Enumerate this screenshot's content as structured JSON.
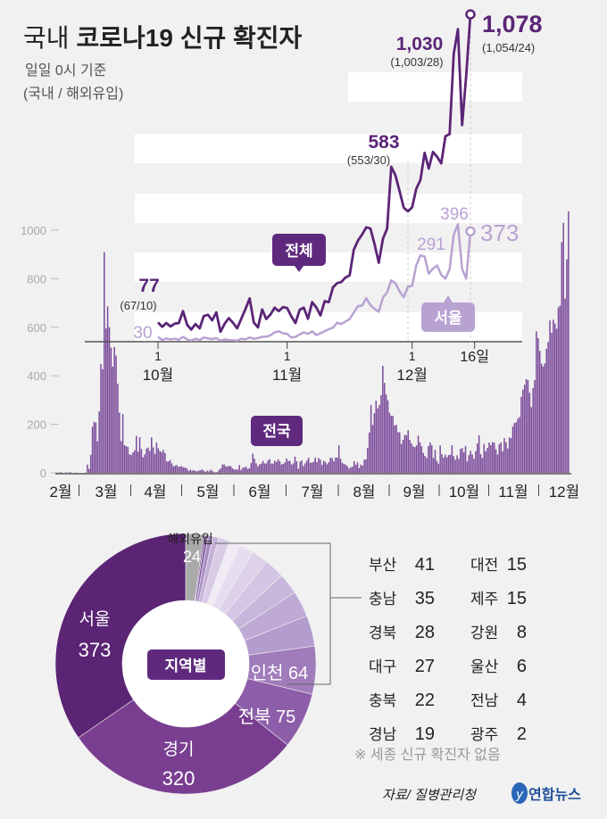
{
  "title": {
    "prefix": "국내",
    "main": "코로나19 신규 확진자"
  },
  "subtitle": {
    "line1": "일일 0시 기준",
    "line2": "(국내 / 해외유입)"
  },
  "colors": {
    "dark": "#5b2577",
    "bar": "#7b4b9b",
    "seoul": "#b8a2d2",
    "gray": "#a9a9a9",
    "badge": "#5f2a7e"
  },
  "chart_data": [
    {
      "type": "line",
      "title": "전체 / 서울 일일 신규 확진자 (10월 1일 ~ 12월 16일)",
      "x_ticks": [
        {
          "label": "1",
          "month": "10월",
          "day_index": 0
        },
        {
          "label": "1",
          "month": "11월",
          "day_index": 31
        },
        {
          "label": "1",
          "month": "12월",
          "day_index": 61
        },
        {
          "label": "16일",
          "month": "",
          "day_index": 76
        }
      ],
      "series": [
        {
          "name": "전체",
          "values": [
            77,
            63,
            75,
            64,
            73,
            75,
            114,
            69,
            54,
            72,
            58,
            98,
            102,
            84,
            110,
            47,
            73,
            91,
            76,
            58,
            89,
            121,
            155,
            77,
            61,
            119,
            88,
            103,
            125,
            114,
            127,
            124,
            97,
            75,
            118,
            125,
            89,
            143,
            126,
            100,
            146,
            143,
            191,
            205,
            208,
            223,
            230,
            313,
            343,
            363,
            386,
            382,
            330,
            271,
            349,
            382,
            583,
            555,
            503,
            450,
            438,
            451,
            511,
            540,
            628,
            577,
            631,
            615,
            594,
            682,
            689,
            950,
            1030,
            718,
            880,
            1078
          ]
        },
        {
          "name": "서울",
          "values": [
            30,
            20,
            25,
            22,
            24,
            21,
            30,
            22,
            18,
            24,
            20,
            28,
            25,
            23,
            26,
            18,
            22,
            20,
            19,
            18,
            24,
            22,
            28,
            24,
            26,
            30,
            31,
            35,
            45,
            48,
            42,
            40,
            28,
            30,
            38,
            45,
            40,
            48,
            36,
            42,
            48,
            55,
            60,
            76,
            72,
            80,
            88,
            109,
            130,
            132,
            156,
            133,
            121,
            112,
            158,
            175,
            214,
            204,
            178,
            159,
            193,
            196,
            262,
            295,
            291,
            235,
            252,
            262,
            232,
            219,
            250,
            362,
            396,
            251,
            219,
            373
          ]
        }
      ],
      "annotations": [
        {
          "value": "77",
          "detail": "(67/10)"
        },
        {
          "value": "30"
        },
        {
          "value": "583",
          "detail": "(553/30)"
        },
        {
          "value": "1,030",
          "detail": "(1,003/28)"
        },
        {
          "value": "1,078",
          "detail": "(1,054/24)"
        },
        {
          "value": "291"
        },
        {
          "value": "396"
        },
        {
          "value": "373"
        }
      ],
      "labels": {
        "total": "전체",
        "seoul": "서울"
      }
    },
    {
      "type": "bar",
      "title": "전국 일일 신규 확진자",
      "label": "전국",
      "ylim": [
        0,
        1000
      ],
      "y_ticks": [
        "0",
        "200",
        "400",
        "600",
        "800",
        "1000"
      ],
      "x_ticks": [
        "2월",
        "3월",
        "4월",
        "5월",
        "6월",
        "7월",
        "8월",
        "9월",
        "10월",
        "11월",
        "12월"
      ],
      "values": [
        1,
        3,
        1,
        0,
        2,
        1,
        1,
        3,
        0,
        0,
        1,
        0,
        0,
        0,
        0,
        0,
        1,
        34,
        16,
        74,
        190,
        210,
        207,
        130,
        253,
        449,
        427,
        909,
        595,
        686,
        600,
        516,
        438,
        518,
        483,
        367,
        248,
        131,
        242,
        114,
        110,
        107,
        76,
        74,
        84,
        93,
        152,
        87,
        147,
        98,
        64,
        76,
        100,
        104,
        91,
        146,
        105,
        78,
        125,
        101,
        89,
        86,
        94,
        81,
        47,
        47,
        53,
        39,
        27,
        30,
        32,
        25,
        27,
        27,
        22,
        22,
        18,
        8,
        13,
        9,
        11,
        8,
        6,
        10,
        10,
        14,
        9,
        4,
        9,
        6,
        13,
        8,
        3,
        2,
        4,
        12,
        18,
        34,
        35,
        27,
        26,
        29,
        27,
        19,
        13,
        15,
        13,
        32,
        12,
        20,
        23,
        25,
        16,
        19,
        40,
        79,
        58,
        39,
        27,
        35,
        38,
        49,
        39,
        39,
        51,
        57,
        38,
        38,
        50,
        45,
        56,
        48,
        34,
        37,
        43,
        59,
        49,
        49,
        34,
        39,
        67,
        48,
        17,
        46,
        51,
        28,
        39,
        51,
        62,
        42,
        42,
        46,
        63,
        44,
        61,
        54,
        33,
        50,
        45,
        35,
        44,
        62,
        61,
        48,
        63,
        63,
        113,
        58,
        41,
        36,
        34,
        28,
        18,
        23,
        25,
        48,
        33,
        43,
        20,
        34,
        30,
        54,
        56,
        103,
        166,
        279,
        197,
        246,
        297,
        266,
        280,
        320,
        441,
        371,
        323,
        299,
        248,
        235,
        235,
        195,
        198,
        168,
        167,
        119,
        136,
        156,
        155,
        176,
        136,
        121,
        109,
        106,
        113,
        153,
        126,
        110,
        82,
        70,
        61,
        110,
        125,
        114,
        61,
        95,
        50,
        38,
        113,
        77,
        63,
        75,
        64,
        73,
        75,
        114,
        69,
        54,
        72,
        58,
        98,
        102,
        84,
        110,
        47,
        73,
        91,
        76,
        58,
        89,
        121,
        155,
        77,
        61,
        119,
        88,
        103,
        125,
        114,
        127,
        124,
        97,
        75,
        118,
        125,
        89,
        143,
        126,
        100,
        146,
        143,
        191,
        205,
        208,
        223,
        230,
        313,
        343,
        363,
        386,
        382,
        330,
        271,
        349,
        382,
        583,
        555,
        503,
        450,
        438,
        451,
        511,
        540,
        628,
        577,
        631,
        615,
        594,
        682,
        689,
        950,
        1030,
        718,
        880,
        1078
      ]
    },
    {
      "type": "pie",
      "title": "지역별",
      "slices": [
        {
          "name": "해외유입",
          "value": 24,
          "color": "#a9a9a9"
        },
        {
          "name": "광주",
          "value": 2,
          "color": "#6d3d8c"
        },
        {
          "name": "전남",
          "value": 4,
          "color": "#8a64a8"
        },
        {
          "name": "울산",
          "value": 6,
          "color": "#a88cc2"
        },
        {
          "name": "강원",
          "value": 8,
          "color": "#c5b1d8"
        },
        {
          "name": "제주",
          "value": 15,
          "color": "#d9cbe6"
        },
        {
          "name": "대전",
          "value": 15,
          "color": "#f0ebf5"
        },
        {
          "name": "경남",
          "value": 19,
          "color": "#e6def0"
        },
        {
          "name": "충북",
          "value": 22,
          "color": "#ddd1ea"
        },
        {
          "name": "대구",
          "value": 27,
          "color": "#d3c5e3"
        },
        {
          "name": "경북",
          "value": 28,
          "color": "#c8b7dc"
        },
        {
          "name": "충남",
          "value": 35,
          "color": "#beaad5"
        },
        {
          "name": "부산",
          "value": 41,
          "color": "#b39dce"
        },
        {
          "name": "인천",
          "value": 64,
          "color": "#a07cbb"
        },
        {
          "name": "전북",
          "value": 75,
          "color": "#8c5ea9"
        },
        {
          "name": "경기",
          "value": 320,
          "color": "#7a3e91"
        },
        {
          "name": "서울",
          "value": 373,
          "color": "#5b2474"
        }
      ],
      "legend": [
        [
          {
            "name": "부산",
            "value": "41"
          },
          {
            "name": "대전",
            "value": "15"
          }
        ],
        [
          {
            "name": "충남",
            "value": "35"
          },
          {
            "name": "제주",
            "value": "15"
          }
        ],
        [
          {
            "name": "경북",
            "value": "28"
          },
          {
            "name": "강원",
            "value": "8"
          }
        ],
        [
          {
            "name": "대구",
            "value": "27"
          },
          {
            "name": "울산",
            "value": "6"
          }
        ],
        [
          {
            "name": "충북",
            "value": "22"
          },
          {
            "name": "전남",
            "value": "4"
          }
        ],
        [
          {
            "name": "경남",
            "value": "19"
          },
          {
            "name": "광주",
            "value": "2"
          }
        ]
      ],
      "note": "※ 세종 신규 확진자 없음"
    }
  ],
  "pie_labels": {
    "overseas": "해외유입",
    "overseas_value": "24",
    "seoul": "서울",
    "seoul_value": "373",
    "gyeonggi": "경기",
    "gyeonggi_value": "320",
    "jeonbuk": "전북 75",
    "incheon": "인천 64",
    "center": "지역별"
  },
  "footer": {
    "source": "자료/ 질병관리청",
    "logo": "연합뉴스"
  }
}
